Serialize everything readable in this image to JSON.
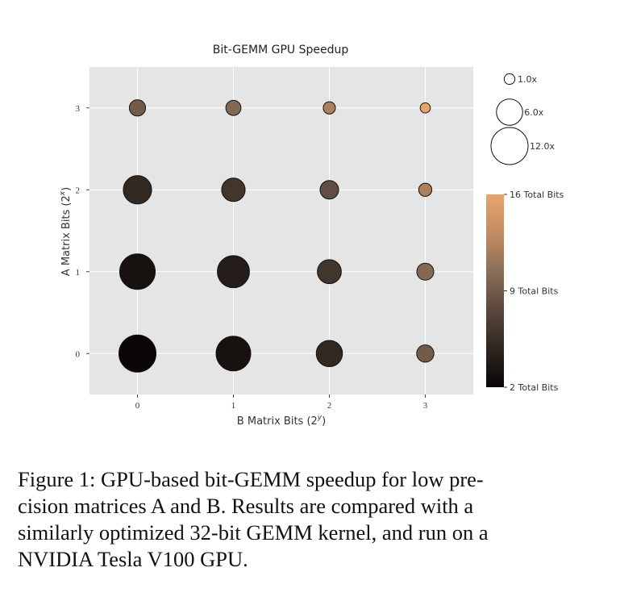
{
  "chart_data": {
    "type": "scatter",
    "title": "Bit-GEMM GPU Speedup",
    "xlabel": "B Matrix Bits (2^y)",
    "ylabel": "A Matrix Bits (2^x)",
    "xlabel_text": "B Matrix Bits (2",
    "xlabel_sup": "y",
    "ylabel_text": "A Matrix Bits (2",
    "ylabel_sup": "x",
    "x_ticks": [
      "0",
      "1",
      "2",
      "3"
    ],
    "y_ticks": [
      "0",
      "1",
      "2",
      "3"
    ],
    "xlim": [
      -0.5,
      3.5
    ],
    "ylim": [
      -0.5,
      3.5
    ],
    "grid": true,
    "background": "#e5e5e5",
    "points": [
      {
        "x": 0,
        "y": 0,
        "speedup": 12.0,
        "total_bits": 2
      },
      {
        "x": 1,
        "y": 0,
        "speedup": 10.5,
        "total_bits": 3
      },
      {
        "x": 2,
        "y": 0,
        "speedup": 6.0,
        "total_bits": 5
      },
      {
        "x": 3,
        "y": 0,
        "speedup": 2.6,
        "total_bits": 9
      },
      {
        "x": 0,
        "y": 1,
        "speedup": 11.0,
        "total_bits": 3
      },
      {
        "x": 1,
        "y": 1,
        "speedup": 9.0,
        "total_bits": 4
      },
      {
        "x": 2,
        "y": 1,
        "speedup": 5.0,
        "total_bits": 6
      },
      {
        "x": 3,
        "y": 1,
        "speedup": 2.5,
        "total_bits": 10
      },
      {
        "x": 0,
        "y": 2,
        "speedup": 7.0,
        "total_bits": 5
      },
      {
        "x": 1,
        "y": 2,
        "speedup": 4.8,
        "total_bits": 6
      },
      {
        "x": 2,
        "y": 2,
        "speedup": 3.0,
        "total_bits": 8
      },
      {
        "x": 3,
        "y": 2,
        "speedup": 1.5,
        "total_bits": 12
      },
      {
        "x": 0,
        "y": 3,
        "speedup": 2.3,
        "total_bits": 9
      },
      {
        "x": 1,
        "y": 3,
        "speedup": 2.0,
        "total_bits": 10
      },
      {
        "x": 2,
        "y": 3,
        "speedup": 1.3,
        "total_bits": 12
      },
      {
        "x": 3,
        "y": 3,
        "speedup": 0.9,
        "total_bits": 16
      }
    ],
    "size_legend": [
      {
        "value": 1.0,
        "label": "1.0x"
      },
      {
        "value": 6.0,
        "label": "6.0x"
      },
      {
        "value": 12.0,
        "label": "12.0x"
      }
    ],
    "colorbar": {
      "min": 2,
      "max": 16,
      "ticks": [
        {
          "value": 16,
          "label": "16 Total Bits"
        },
        {
          "value": 9,
          "label": "9 Total Bits"
        },
        {
          "value": 2,
          "label": "2 Total Bits"
        }
      ],
      "colors": [
        "#0a0606",
        "#2e2620",
        "#5a483d",
        "#8a6e58",
        "#c38d62",
        "#e9a46c"
      ]
    }
  },
  "caption": {
    "lines": [
      "Figure 1:  GPU-based bit-GEMM speedup for low pre-",
      "cision matrices A and B. Results are compared with a",
      "similarly optimized 32-bit GEMM kernel, and run on a",
      "NVIDIA Tesla V100 GPU."
    ]
  }
}
